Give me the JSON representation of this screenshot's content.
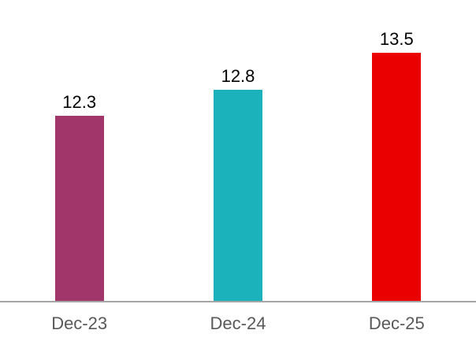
{
  "chart_data": {
    "type": "bar",
    "title": "",
    "xlabel": "",
    "ylabel": "",
    "categories": [
      "Dec-23",
      "Dec-24",
      "Dec-25"
    ],
    "values": [
      12.3,
      12.8,
      13.5
    ],
    "value_labels": [
      "12.3",
      "12.8",
      "13.5"
    ],
    "bar_colors": [
      "#A1366A",
      "#1CB2BC",
      "#EB0000"
    ],
    "ylim": [
      8.8,
      14.5
    ],
    "grid": false,
    "legend": false,
    "axis_line_color": "#A6A6A6",
    "value_label_color": "#000000",
    "tick_label_color": "#595959"
  }
}
